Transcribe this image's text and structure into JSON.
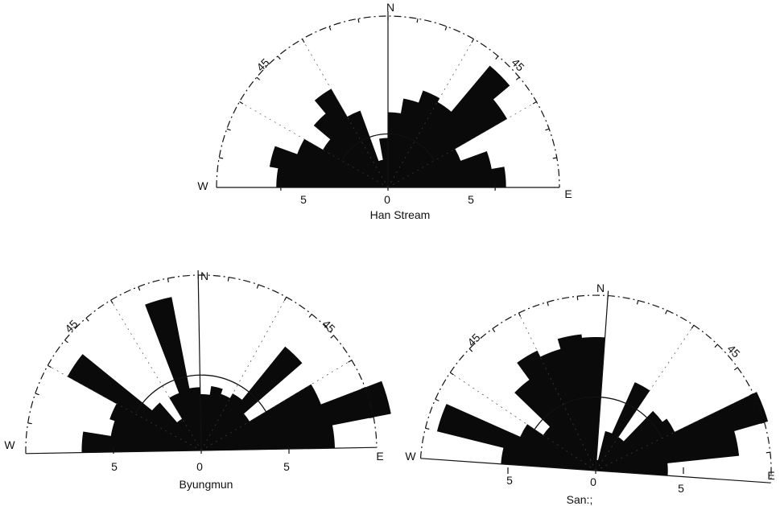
{
  "chart_data": [
    {
      "type": "rose",
      "name": "Han Stream",
      "compass": {
        "north": "N",
        "east": "E",
        "west": "W"
      },
      "angle_labels": {
        "left": "45",
        "right": "45"
      },
      "radial_ticks": {
        "left": "5",
        "center": "0",
        "right": "5"
      },
      "rmax": 8,
      "inner_circle": 2.5,
      "bins_deg": 10,
      "sectors": [
        {
          "from": -90,
          "to": -80,
          "value": 5.2
        },
        {
          "from": -80,
          "to": -70,
          "value": 5.6
        },
        {
          "from": -70,
          "to": -60,
          "value": 4.5
        },
        {
          "from": -60,
          "to": -50,
          "value": 3.5
        },
        {
          "from": -50,
          "to": -40,
          "value": 4.5
        },
        {
          "from": -40,
          "to": -30,
          "value": 5.3
        },
        {
          "from": -30,
          "to": -20,
          "value": 3.8
        },
        {
          "from": -20,
          "to": -10,
          "value": 1.3
        },
        {
          "from": -10,
          "to": 0,
          "value": 2.3
        },
        {
          "from": 0,
          "to": 10,
          "value": 3.5
        },
        {
          "from": 10,
          "to": 20,
          "value": 4.2
        },
        {
          "from": 20,
          "to": 30,
          "value": 4.8
        },
        {
          "from": 30,
          "to": 40,
          "value": 4.6
        },
        {
          "from": 40,
          "to": 50,
          "value": 7.4
        },
        {
          "from": 50,
          "to": 60,
          "value": 6.4
        },
        {
          "from": 60,
          "to": 70,
          "value": 3.6
        },
        {
          "from": 70,
          "to": 80,
          "value": 4.9
        },
        {
          "from": 80,
          "to": 90,
          "value": 5.5
        }
      ]
    },
    {
      "type": "rose",
      "name": "Byungmun",
      "compass": {
        "north": "N",
        "east": "E",
        "west": "W"
      },
      "angle_labels": {
        "left": "45",
        "right": "45"
      },
      "radial_ticks": {
        "left": "5",
        "center": "0",
        "right": "5"
      },
      "rmax": 10,
      "inner_circle": 4.3,
      "bins_deg": 10,
      "sectors": [
        {
          "from": -90,
          "to": -80,
          "value": 6.8
        },
        {
          "from": -80,
          "to": -70,
          "value": 5.2
        },
        {
          "from": -70,
          "to": -60,
          "value": 5.5
        },
        {
          "from": -60,
          "to": -50,
          "value": 8.7
        },
        {
          "from": -50,
          "to": -40,
          "value": 3.6
        },
        {
          "from": -40,
          "to": -30,
          "value": 2.1
        },
        {
          "from": -30,
          "to": -20,
          "value": 3.5
        },
        {
          "from": -20,
          "to": -10,
          "value": 8.9
        },
        {
          "from": -10,
          "to": 0,
          "value": 3.6
        },
        {
          "from": 0,
          "to": 10,
          "value": 3.2
        },
        {
          "from": 10,
          "to": 20,
          "value": 3.7
        },
        {
          "from": 20,
          "to": 30,
          "value": 3.4
        },
        {
          "from": 30,
          "to": 40,
          "value": 3.7
        },
        {
          "from": 40,
          "to": 50,
          "value": 7.6
        },
        {
          "from": 50,
          "to": 60,
          "value": 3.2
        },
        {
          "from": 60,
          "to": 70,
          "value": 7.3
        },
        {
          "from": 70,
          "to": 80,
          "value": 11.0
        },
        {
          "from": 80,
          "to": 90,
          "value": 7.6
        }
      ]
    },
    {
      "type": "rose",
      "name": "San:;",
      "compass": {
        "north": "N",
        "east": "E",
        "west": "W"
      },
      "angle_labels": {
        "left": "45",
        "right": "45"
      },
      "radial_ticks": {
        "left": "5",
        "center": "0",
        "right": "5"
      },
      "rmax": 10,
      "inner_circle": 4.2,
      "bins_deg": 10,
      "sectors": [
        {
          "from": -90,
          "to": -80,
          "value": 5.4
        },
        {
          "from": -80,
          "to": -70,
          "value": 9.3
        },
        {
          "from": -70,
          "to": -60,
          "value": 4.7
        },
        {
          "from": -60,
          "to": -50,
          "value": 3.6
        },
        {
          "from": -50,
          "to": -40,
          "value": 6.4
        },
        {
          "from": -40,
          "to": -30,
          "value": 7.6
        },
        {
          "from": -30,
          "to": -20,
          "value": 7.2
        },
        {
          "from": -20,
          "to": -10,
          "value": 7.8
        },
        {
          "from": -10,
          "to": 0,
          "value": 7.6
        },
        {
          "from": 0,
          "to": 10,
          "value": 0.6
        },
        {
          "from": 10,
          "to": 20,
          "value": 2.3
        },
        {
          "from": 20,
          "to": 30,
          "value": 5.5
        },
        {
          "from": 30,
          "to": 40,
          "value": 2.3
        },
        {
          "from": 40,
          "to": 50,
          "value": 4.7
        },
        {
          "from": 50,
          "to": 60,
          "value": 5.0
        },
        {
          "from": 60,
          "to": 70,
          "value": 10.2
        },
        {
          "from": 70,
          "to": 80,
          "value": 8.2
        },
        {
          "from": 80,
          "to": 90,
          "value": 4.1
        }
      ]
    }
  ]
}
